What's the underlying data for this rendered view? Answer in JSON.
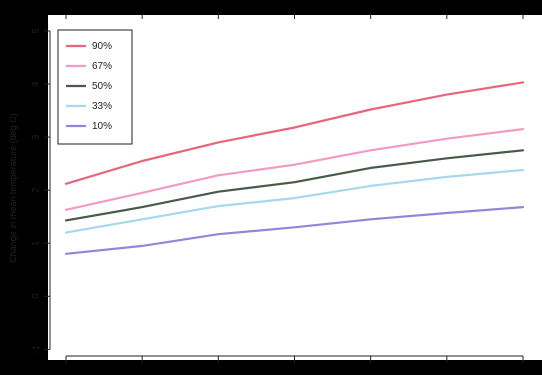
{
  "chart_data": {
    "type": "line",
    "title": "",
    "xlabel": "",
    "ylabel": "Change in mean temperature (deg C)",
    "x": [
      0,
      1,
      2,
      3,
      4,
      5,
      6
    ],
    "ylim": [
      -1.2,
      5.3
    ],
    "yticks": [
      -1,
      0,
      1,
      2,
      3,
      4,
      5
    ],
    "ytick_labels": [
      "-1",
      "0",
      "1",
      "2",
      "3",
      "4",
      "5"
    ],
    "grid": false,
    "legend_position": "top-left",
    "series": [
      {
        "name": "90%",
        "color": "#e8667a",
        "values": [
          2.12,
          2.55,
          2.9,
          3.18,
          3.52,
          3.8,
          4.03
        ]
      },
      {
        "name": "67%",
        "color": "#f29bc2",
        "values": [
          1.63,
          1.95,
          2.28,
          2.48,
          2.75,
          2.97,
          3.15
        ]
      },
      {
        "name": "50%",
        "color": "#4a5a4a",
        "values": [
          1.43,
          1.68,
          1.97,
          2.15,
          2.42,
          2.6,
          2.75
        ]
      },
      {
        "name": "33%",
        "color": "#a8d8ee",
        "values": [
          1.2,
          1.45,
          1.7,
          1.85,
          2.08,
          2.25,
          2.38
        ]
      },
      {
        "name": "10%",
        "color": "#8f88d8",
        "values": [
          0.8,
          0.95,
          1.17,
          1.3,
          1.45,
          1.57,
          1.68
        ]
      }
    ]
  }
}
